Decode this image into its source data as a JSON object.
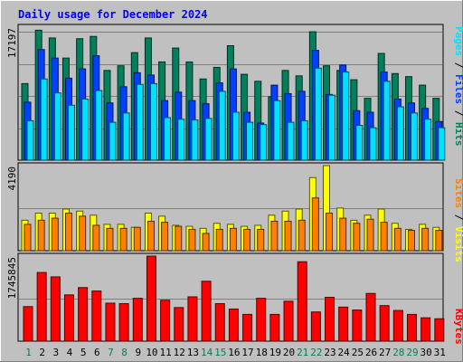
{
  "chart_data": [
    {
      "type": "bar",
      "title": "Daily usage for December 2024",
      "panel": "pages-files-hits",
      "ylabel_max": "17197",
      "legend": [
        {
          "label": "Pages",
          "color": "#00e0ff"
        },
        {
          "label": "Files",
          "color": "#0040ff"
        },
        {
          "label": "Hits",
          "color": "#00805c"
        }
      ],
      "categories": [
        "1",
        "2",
        "3",
        "4",
        "5",
        "6",
        "7",
        "8",
        "9",
        "10",
        "11",
        "12",
        "13",
        "14",
        "15",
        "16",
        "17",
        "18",
        "19",
        "20",
        "21",
        "22",
        "23",
        "24",
        "25",
        "26",
        "27",
        "28",
        "29",
        "30",
        "31"
      ],
      "weekend_days": [
        "1",
        "7",
        "8",
        "14",
        "15",
        "21",
        "22",
        "28",
        "29"
      ],
      "series": [
        {
          "name": "Hits",
          "color": "#00805c",
          "values": [
            9900,
            16800,
            15800,
            13200,
            15700,
            16000,
            11600,
            12200,
            13900,
            15800,
            12700,
            14500,
            12700,
            10500,
            12000,
            14800,
            11100,
            10200,
            8200,
            11600,
            10900,
            16600,
            12200,
            11600,
            10400,
            8000,
            13800,
            11200,
            10800,
            9700,
            8000
          ]
        },
        {
          "name": "Files",
          "color": "#0040ff",
          "values": [
            7500,
            14300,
            13200,
            10600,
            11800,
            13500,
            7400,
            9500,
            11300,
            11000,
            7700,
            8800,
            7700,
            7300,
            10000,
            11800,
            6200,
            4800,
            9700,
            8600,
            8900,
            14200,
            8500,
            12300,
            6400,
            6200,
            11400,
            7900,
            7400,
            6700,
            5000
          ]
        },
        {
          "name": "Pages",
          "color": "#00e0ff",
          "values": [
            5100,
            10500,
            8700,
            7100,
            7900,
            9000,
            4900,
            6100,
            9800,
            9900,
            5500,
            5300,
            5200,
            5400,
            8900,
            6200,
            4900,
            4600,
            7700,
            4900,
            5100,
            11900,
            8400,
            11400,
            4500,
            4200,
            10200,
            6900,
            6100,
            5300,
            4200
          ]
        }
      ],
      "ylim": [
        0,
        17197
      ]
    },
    {
      "type": "bar",
      "panel": "visits-sites",
      "ylabel_max": "4190",
      "legend": [
        {
          "label": "Sites",
          "color": "#ff8000"
        },
        {
          "label": "Visits",
          "color": "#ffff00"
        }
      ],
      "categories": [
        "1",
        "2",
        "3",
        "4",
        "5",
        "6",
        "7",
        "8",
        "9",
        "10",
        "11",
        "12",
        "13",
        "14",
        "15",
        "16",
        "17",
        "18",
        "19",
        "20",
        "21",
        "22",
        "23",
        "24",
        "25",
        "26",
        "27",
        "28",
        "29",
        "30",
        "31"
      ],
      "series": [
        {
          "name": "Visits",
          "color": "#ffff00",
          "values": [
            1500,
            1850,
            1850,
            2050,
            1950,
            1750,
            1300,
            1300,
            1150,
            1850,
            1700,
            1250,
            1200,
            1100,
            1350,
            1300,
            1200,
            1250,
            1750,
            1950,
            2050,
            3600,
            4190,
            2100,
            1500,
            1750,
            2050,
            1350,
            1050,
            1300,
            1150
          ]
        },
        {
          "name": "Sites",
          "color": "#ff8000",
          "values": [
            1300,
            1500,
            1600,
            1850,
            1700,
            1250,
            1100,
            1100,
            1150,
            1450,
            1400,
            1200,
            1050,
            850,
            1050,
            1100,
            1050,
            1050,
            1450,
            1450,
            1500,
            2600,
            1850,
            1600,
            1350,
            1550,
            1400,
            1100,
            1000,
            1100,
            1000
          ]
        }
      ],
      "ylim": [
        0,
        4190
      ]
    },
    {
      "type": "bar",
      "panel": "kbytes",
      "ylabel_max": "1745845",
      "legend": [
        {
          "label": "KBytes",
          "color": "#ff0000"
        }
      ],
      "categories": [
        "1",
        "2",
        "3",
        "4",
        "5",
        "6",
        "7",
        "8",
        "9",
        "10",
        "11",
        "12",
        "13",
        "14",
        "15",
        "16",
        "17",
        "18",
        "19",
        "20",
        "21",
        "22",
        "23",
        "24",
        "25",
        "26",
        "27",
        "28",
        "29",
        "30",
        "31"
      ],
      "series": [
        {
          "name": "KBytes",
          "color": "#ff0000",
          "values": [
            710000,
            1410000,
            1320000,
            950000,
            1100000,
            1030000,
            780000,
            770000,
            880000,
            1745845,
            840000,
            690000,
            910000,
            1230000,
            770000,
            660000,
            550000,
            880000,
            550000,
            820000,
            1630000,
            600000,
            900000,
            700000,
            640000,
            980000,
            730000,
            630000,
            550000,
            480000,
            460000
          ]
        }
      ],
      "ylim": [
        0,
        1745845
      ]
    }
  ]
}
